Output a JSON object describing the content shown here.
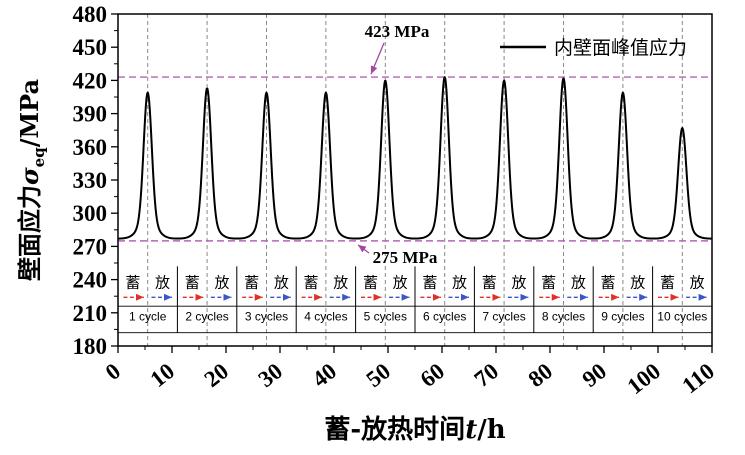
{
  "chart_data": {
    "type": "line",
    "title": "",
    "xlabel": {
      "pre": "蓄-放热时间",
      "italic": "t",
      "post": "/h",
      "full": "蓄-放热时间t/h"
    },
    "ylabel": {
      "pre": "壁面应力",
      "sym": "σ",
      "sub": "eq",
      "post": "/MPa",
      "full": "壁面应力σeq/MPa"
    },
    "xlim": [
      0,
      110
    ],
    "ylim": [
      180,
      480
    ],
    "x_ticks": [
      0,
      10,
      20,
      30,
      40,
      50,
      60,
      70,
      80,
      90,
      100,
      110
    ],
    "y_ticks": [
      180,
      210,
      240,
      270,
      300,
      330,
      360,
      390,
      420,
      450,
      480
    ],
    "x_minor_step": 5,
    "y_minor_step": 15,
    "grid": false,
    "legend": {
      "position": "top-right",
      "entries": [
        {
          "label": "内壁面峰值应力",
          "color": "#000000",
          "type": "line"
        }
      ]
    },
    "series": [
      {
        "name": "内壁面峰值应力",
        "color": "#000000",
        "baseline": 277,
        "peaks": [
          {
            "x": 5.5,
            "y": 409
          },
          {
            "x": 16.5,
            "y": 413
          },
          {
            "x": 27.5,
            "y": 409
          },
          {
            "x": 38.5,
            "y": 409
          },
          {
            "x": 49.5,
            "y": 420
          },
          {
            "x": 60.5,
            "y": 423
          },
          {
            "x": 71.5,
            "y": 420
          },
          {
            "x": 82.5,
            "y": 422
          },
          {
            "x": 93.5,
            "y": 409
          },
          {
            "x": 104.5,
            "y": 377
          }
        ]
      }
    ],
    "reference_lines": [
      {
        "value": 423,
        "label": "423 MPa",
        "color": "#b565b5"
      },
      {
        "value": 275,
        "label": "275 MPa",
        "color": "#b565b5"
      }
    ],
    "cycles": {
      "count": 10,
      "width_h": 11,
      "labels": [
        "1 cycle",
        "2 cycles",
        "3 cycles",
        "4 cycles",
        "5 cycles",
        "6 cycles",
        "7 cycles",
        "8 cycles",
        "9 cycles",
        "10 cycles"
      ],
      "phase_charge": "蓄",
      "phase_discharge": "放",
      "charge_arrow_color": "#e03127",
      "discharge_arrow_color": "#3c55c8"
    }
  },
  "colors": {
    "annotation": "#a347a3",
    "axis": "#000000",
    "dashed_divider": "#888888",
    "background": "#ffffff"
  }
}
